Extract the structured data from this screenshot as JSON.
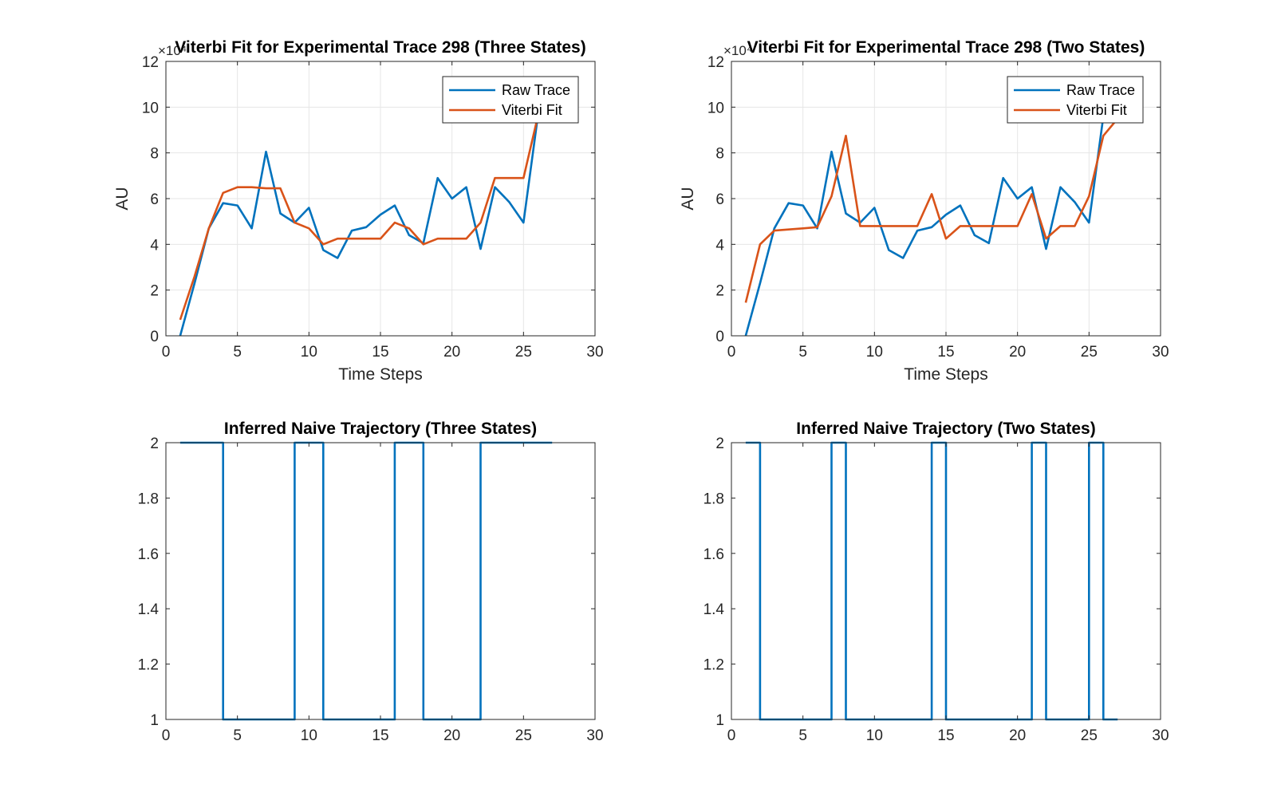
{
  "colors": {
    "blue": "#0072BD",
    "orange": "#D95319"
  },
  "chart_data": [
    {
      "id": "p1",
      "type": "line",
      "title": "Viterbi Fit for Experimental Trace 298 (Three States)",
      "xlabel": "Time Steps",
      "ylabel": "AU",
      "exponent_label": "×10⁴",
      "xlim": [
        0,
        30
      ],
      "ylim": [
        0,
        12
      ],
      "xticks": [
        0,
        5,
        10,
        15,
        20,
        25,
        30
      ],
      "yticks": [
        0,
        2,
        4,
        6,
        8,
        10,
        12
      ],
      "grid": true,
      "legend": "top-right",
      "series": [
        {
          "name": "Raw Trace",
          "color": "#0072BD",
          "x": [
            1,
            2,
            3,
            4,
            5,
            6,
            7,
            8,
            9,
            10,
            11,
            12,
            13,
            14,
            15,
            16,
            17,
            18,
            19,
            20,
            21,
            22,
            23,
            24,
            25,
            26,
            27
          ],
          "y": [
            0,
            2.3,
            4.7,
            5.8,
            5.7,
            4.7,
            8.05,
            5.35,
            4.95,
            5.6,
            3.75,
            3.4,
            4.6,
            4.75,
            5.3,
            5.7,
            4.4,
            4.05,
            6.9,
            6.0,
            6.5,
            3.8,
            6.5,
            5.85,
            4.95,
            9.6,
            11.3
          ]
        },
        {
          "name": "Viterbi Fit",
          "color": "#D95319",
          "x": [
            1,
            2,
            3,
            4,
            5,
            6,
            7,
            8,
            9,
            10,
            11,
            12,
            13,
            14,
            15,
            16,
            17,
            18,
            19,
            20,
            21,
            22,
            23,
            24,
            25,
            26,
            27
          ],
          "y": [
            0.7,
            2.6,
            4.7,
            6.25,
            6.5,
            6.5,
            6.45,
            6.45,
            4.95,
            4.7,
            4.0,
            4.25,
            4.25,
            4.25,
            4.25,
            4.95,
            4.7,
            4.0,
            4.25,
            4.25,
            4.25,
            4.95,
            6.9,
            6.9,
            6.9,
            9.6,
            11.3
          ]
        }
      ]
    },
    {
      "id": "p2",
      "type": "line",
      "title": "Viterbi Fit for Experimental Trace  298 (Two States)",
      "xlabel": "Time Steps",
      "ylabel": "AU",
      "exponent_label": "×10⁴",
      "xlim": [
        0,
        30
      ],
      "ylim": [
        0,
        12
      ],
      "xticks": [
        0,
        5,
        10,
        15,
        20,
        25,
        30
      ],
      "yticks": [
        0,
        2,
        4,
        6,
        8,
        10,
        12
      ],
      "grid": true,
      "legend": "top-right",
      "series": [
        {
          "name": "Raw Trace",
          "color": "#0072BD",
          "x": [
            1,
            2,
            3,
            4,
            5,
            6,
            7,
            8,
            9,
            10,
            11,
            12,
            13,
            14,
            15,
            16,
            17,
            18,
            19,
            20,
            21,
            22,
            23,
            24,
            25,
            26,
            27
          ],
          "y": [
            0,
            2.3,
            4.7,
            5.8,
            5.7,
            4.7,
            8.05,
            5.35,
            4.95,
            5.6,
            3.75,
            3.4,
            4.6,
            4.75,
            5.3,
            5.7,
            4.4,
            4.05,
            6.9,
            6.0,
            6.5,
            3.8,
            6.5,
            5.85,
            4.95,
            9.6,
            11.3
          ]
        },
        {
          "name": "Viterbi Fit",
          "color": "#D95319",
          "x": [
            1,
            2,
            3,
            4,
            5,
            6,
            7,
            8,
            9,
            10,
            11,
            12,
            13,
            14,
            15,
            16,
            17,
            18,
            19,
            20,
            21,
            22,
            23,
            24,
            25,
            26,
            27
          ],
          "y": [
            1.45,
            4.0,
            4.6,
            4.65,
            4.7,
            4.75,
            6.1,
            8.75,
            4.8,
            4.8,
            4.8,
            4.8,
            4.8,
            6.2,
            4.25,
            4.8,
            4.8,
            4.8,
            4.8,
            4.8,
            6.2,
            4.25,
            4.8,
            4.8,
            6.1,
            8.75,
            9.5
          ]
        }
      ]
    },
    {
      "id": "p3",
      "type": "line",
      "step": true,
      "title": "Inferred Naive Trajectory (Three States)",
      "xlabel": "",
      "ylabel": "",
      "xlim": [
        0,
        30
      ],
      "ylim": [
        1,
        2
      ],
      "xticks": [
        0,
        5,
        10,
        15,
        20,
        25,
        30
      ],
      "yticks": [
        1,
        1.2,
        1.4,
        1.6,
        1.8,
        2
      ],
      "grid": false,
      "series": [
        {
          "color": "#0072BD",
          "x": [
            1,
            2,
            3,
            4,
            5,
            6,
            7,
            8,
            9,
            10,
            11,
            12,
            13,
            14,
            15,
            16,
            17,
            18,
            19,
            20,
            21,
            22,
            23,
            24,
            25,
            26,
            27
          ],
          "y": [
            2,
            2,
            2,
            1,
            1,
            1,
            1,
            1,
            2,
            2,
            1,
            1,
            1,
            1,
            1,
            2,
            2,
            1,
            1,
            1,
            1,
            2,
            2,
            2,
            2,
            2,
            2
          ]
        }
      ]
    },
    {
      "id": "p4",
      "type": "line",
      "step": true,
      "title": "Inferred Naive Trajectory (Two States)",
      "xlabel": "",
      "ylabel": "",
      "xlim": [
        0,
        30
      ],
      "ylim": [
        1,
        2
      ],
      "xticks": [
        0,
        5,
        10,
        15,
        20,
        25,
        30
      ],
      "yticks": [
        1,
        1.2,
        1.4,
        1.6,
        1.8,
        2
      ],
      "grid": false,
      "series": [
        {
          "color": "#0072BD",
          "x": [
            1,
            2,
            3,
            4,
            5,
            6,
            7,
            8,
            9,
            10,
            11,
            12,
            13,
            14,
            15,
            16,
            17,
            18,
            19,
            20,
            21,
            22,
            23,
            24,
            25,
            26,
            27
          ],
          "y": [
            2,
            1,
            1,
            1,
            1,
            1,
            2,
            1,
            1,
            1,
            1,
            1,
            1,
            2,
            1,
            1,
            1,
            1,
            1,
            1,
            2,
            1,
            1,
            1,
            2,
            1,
            1
          ]
        }
      ]
    }
  ]
}
